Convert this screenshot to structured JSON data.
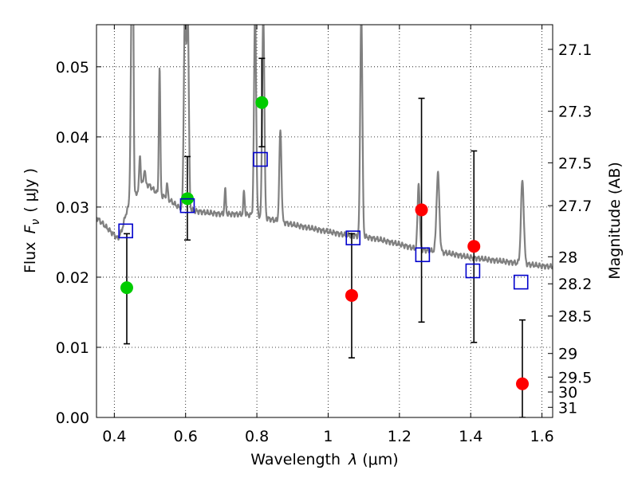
{
  "chart_data": {
    "type": "scatter",
    "xlabel_prefix": "Wavelength",
    "xlabel_symbol": "λ",
    "xlabel_unit": "(μm)",
    "ylabel_prefix": "Flux",
    "ylabel_symbol": "F",
    "ylabel_subscript": "ν",
    "ylabel_unit": "( μJy )",
    "y2label": "Magnitude (AB)",
    "xlim": [
      0.35,
      1.63
    ],
    "ylim": [
      0.0,
      0.056
    ],
    "grid": true,
    "x_ticks": [
      {
        "v": 0.4,
        "label": "0.4"
      },
      {
        "v": 0.6,
        "label": "0.6"
      },
      {
        "v": 0.8,
        "label": "0.8"
      },
      {
        "v": 1.0,
        "label": "1"
      },
      {
        "v": 1.2,
        "label": "1.2"
      },
      {
        "v": 1.4,
        "label": "1.4"
      },
      {
        "v": 1.6,
        "label": "1.6"
      }
    ],
    "y_ticks": [
      {
        "v": 0.0,
        "label": "0.00"
      },
      {
        "v": 0.01,
        "label": "0.01"
      },
      {
        "v": 0.02,
        "label": "0.02"
      },
      {
        "v": 0.03,
        "label": "0.03"
      },
      {
        "v": 0.04,
        "label": "0.04"
      },
      {
        "v": 0.05,
        "label": "0.05"
      }
    ],
    "y2_ticks": [
      {
        "mag": 27.1,
        "label": "27.1"
      },
      {
        "mag": 27.3,
        "label": "27.3"
      },
      {
        "mag": 27.5,
        "label": "27.5"
      },
      {
        "mag": 27.7,
        "label": "27.7"
      },
      {
        "mag": 28.0,
        "label": "28"
      },
      {
        "mag": 28.2,
        "label": "28.2"
      },
      {
        "mag": 28.5,
        "label": "28.5"
      },
      {
        "mag": 29.0,
        "label": "29"
      },
      {
        "mag": 29.5,
        "label": "29.5"
      },
      {
        "mag": 30.0,
        "label": "30"
      },
      {
        "mag": 31.0,
        "label": "31"
      }
    ],
    "model_spectrum": {
      "color": "#808080",
      "continuum": [
        [
          0.35,
          0.0285
        ],
        [
          0.38,
          0.027
        ],
        [
          0.41,
          0.0255
        ],
        [
          0.42,
          0.0265
        ],
        [
          0.435,
          0.0295
        ],
        [
          0.45,
          0.031
        ],
        [
          0.46,
          0.0318
        ],
        [
          0.48,
          0.0335
        ],
        [
          0.5,
          0.033
        ],
        [
          0.52,
          0.032
        ],
        [
          0.55,
          0.0312
        ],
        [
          0.58,
          0.03
        ],
        [
          0.62,
          0.0295
        ],
        [
          0.66,
          0.0292
        ],
        [
          0.7,
          0.029
        ],
        [
          0.74,
          0.029
        ],
        [
          0.78,
          0.0289
        ],
        [
          0.82,
          0.0285
        ],
        [
          0.86,
          0.028
        ],
        [
          0.9,
          0.0275
        ],
        [
          0.95,
          0.027
        ],
        [
          1.0,
          0.0265
        ],
        [
          1.05,
          0.026
        ],
        [
          1.1,
          0.0258
        ],
        [
          1.15,
          0.0253
        ],
        [
          1.2,
          0.0247
        ],
        [
          1.25,
          0.024
        ],
        [
          1.3,
          0.0237
        ],
        [
          1.35,
          0.0233
        ],
        [
          1.4,
          0.0228
        ],
        [
          1.45,
          0.0225
        ],
        [
          1.5,
          0.0222
        ],
        [
          1.55,
          0.0219
        ],
        [
          1.6,
          0.0216
        ],
        [
          1.63,
          0.0215
        ]
      ],
      "lines": [
        {
          "x": 0.449,
          "peak": 0.058,
          "w": 0.003
        },
        {
          "x": 0.452,
          "peak": 0.058,
          "w": 0.002
        },
        {
          "x": 0.472,
          "peak": 0.0375,
          "w": 0.002
        },
        {
          "x": 0.485,
          "peak": 0.0355,
          "w": 0.002
        },
        {
          "x": 0.527,
          "peak": 0.05,
          "w": 0.002
        },
        {
          "x": 0.548,
          "peak": 0.0333,
          "w": 0.002
        },
        {
          "x": 0.598,
          "peak": 0.058,
          "w": 0.003
        },
        {
          "x": 0.606,
          "peak": 0.058,
          "w": 0.003
        },
        {
          "x": 0.711,
          "peak": 0.0325,
          "w": 0.002
        },
        {
          "x": 0.764,
          "peak": 0.0322,
          "w": 0.002
        },
        {
          "x": 0.795,
          "peak": 0.058,
          "w": 0.003
        },
        {
          "x": 0.818,
          "peak": 0.058,
          "w": 0.003
        },
        {
          "x": 0.866,
          "peak": 0.041,
          "w": 0.003
        },
        {
          "x": 1.093,
          "peak": 0.058,
          "w": 0.003
        },
        {
          "x": 1.254,
          "peak": 0.0335,
          "w": 0.003
        },
        {
          "x": 1.308,
          "peak": 0.0348,
          "w": 0.004
        },
        {
          "x": 1.545,
          "peak": 0.0338,
          "w": 0.004
        }
      ]
    },
    "green_points": {
      "color": "#00cc00",
      "points": [
        {
          "x": 0.435,
          "y": 0.0185
        },
        {
          "x": 0.605,
          "y": 0.0312
        },
        {
          "x": 0.814,
          "y": 0.0449
        }
      ]
    },
    "red_points": {
      "color": "#ff0000",
      "points": [
        {
          "x": 1.066,
          "y": 0.0174
        },
        {
          "x": 1.262,
          "y": 0.0296
        },
        {
          "x": 1.409,
          "y": 0.0244
        },
        {
          "x": 1.545,
          "y": 0.0048
        }
      ]
    },
    "error_bars": [
      {
        "x": 0.435,
        "low": 0.0105,
        "high": 0.0262
      },
      {
        "x": 0.605,
        "low": 0.0253,
        "high": 0.0372
      },
      {
        "x": 0.814,
        "low": 0.0386,
        "high": 0.0512
      },
      {
        "x": 1.066,
        "low": 0.0085,
        "high": 0.0262
      },
      {
        "x": 1.262,
        "low": 0.0136,
        "high": 0.0455
      },
      {
        "x": 1.409,
        "low": 0.0107,
        "high": 0.038
      },
      {
        "x": 1.545,
        "low": 0.0,
        "high": 0.0139
      }
    ],
    "model_photometry": {
      "color": "#0000cc",
      "points": [
        {
          "x": 0.432,
          "y": 0.0266
        },
        {
          "x": 0.605,
          "y": 0.0302
        },
        {
          "x": 0.81,
          "y": 0.0368
        },
        {
          "x": 1.07,
          "y": 0.0256
        },
        {
          "x": 1.265,
          "y": 0.0232
        },
        {
          "x": 1.406,
          "y": 0.0209
        },
        {
          "x": 1.541,
          "y": 0.0193
        }
      ]
    }
  }
}
